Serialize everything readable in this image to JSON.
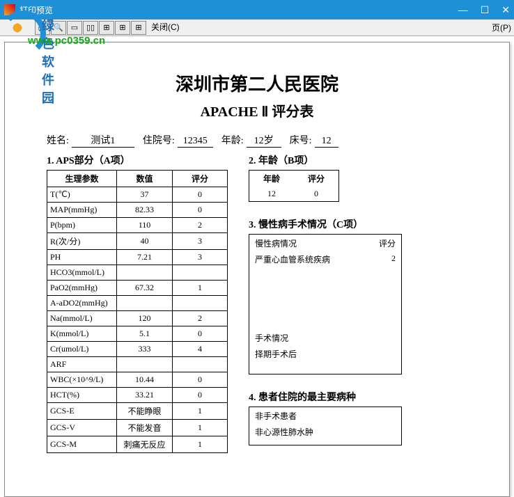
{
  "window": {
    "title": "打印预览",
    "page_button": "页(P)",
    "close_label": "关闭(C)"
  },
  "watermark": {
    "line1": "绿色软件园",
    "line2": "www.pc0359.cn"
  },
  "doc": {
    "hospital": "深圳市第二人民医院",
    "form_name": "APACHE Ⅱ 评分表"
  },
  "info": {
    "name_label": "姓名:",
    "name": "测试1",
    "admission_label": "住院号:",
    "admission": "12345",
    "age_label": "年龄:",
    "age": "12岁",
    "bed_label": "床号:",
    "bed": "12"
  },
  "sectionA": {
    "title": "1. APS部分（A项）",
    "headers": {
      "param": "生理参数",
      "value": "数值",
      "score": "评分"
    },
    "rows": [
      {
        "param": "T(℃)",
        "value": "37",
        "score": "0"
      },
      {
        "param": "MAP(mmHg)",
        "value": "82.33",
        "score": "0"
      },
      {
        "param": "P(bpm)",
        "value": "110",
        "score": "2"
      },
      {
        "param": "R(次/分)",
        "value": "40",
        "score": "3"
      },
      {
        "param": "PH",
        "value": "7.21",
        "score": "3"
      },
      {
        "param": "HCO3(mmol/L)",
        "value": "",
        "score": ""
      },
      {
        "param": "PaO2(mmHg)",
        "value": "67.32",
        "score": "1"
      },
      {
        "param": "A-aDO2(mmHg)",
        "value": "",
        "score": ""
      },
      {
        "param": "Na(mmol/L)",
        "value": "120",
        "score": "2"
      },
      {
        "param": "K(mmol/L)",
        "value": "5.1",
        "score": "0"
      },
      {
        "param": "Cr(umol/L)",
        "value": "333",
        "score": "4"
      },
      {
        "param": "ARF",
        "value": "",
        "score": ""
      },
      {
        "param": "WBC(×10^9/L)",
        "value": "10.44",
        "score": "0"
      },
      {
        "param": "HCT(%)",
        "value": "33.21",
        "score": "0"
      },
      {
        "param": "GCS-E",
        "value": "不能睁眼",
        "score": "1"
      },
      {
        "param": "GCS-V",
        "value": "不能发音",
        "score": "1"
      },
      {
        "param": "GCS-M",
        "value": "刺痛无反应",
        "score": "1"
      }
    ]
  },
  "sectionB": {
    "title": "2. 年龄（B项）",
    "headers": {
      "age": "年龄",
      "score": "评分"
    },
    "age": "12",
    "score": "0"
  },
  "sectionC": {
    "title": "3. 慢性病手术情况（C项）",
    "cond_label": "慢性病情况",
    "score_label": "评分",
    "cond": "严重心血管系统疾病",
    "cond_score": "2",
    "surgery_label": "手术情况",
    "surgery": "择期手术后"
  },
  "sectionD": {
    "title": "4. 患者住院的最主要病种",
    "line1": "非手术患者",
    "line2": "非心源性肺水肿"
  },
  "colors": {
    "titlebar_bg": "#1e90d8",
    "border": "#000000",
    "wm_blue": "#1e6fb8",
    "wm_green": "#18a818"
  }
}
